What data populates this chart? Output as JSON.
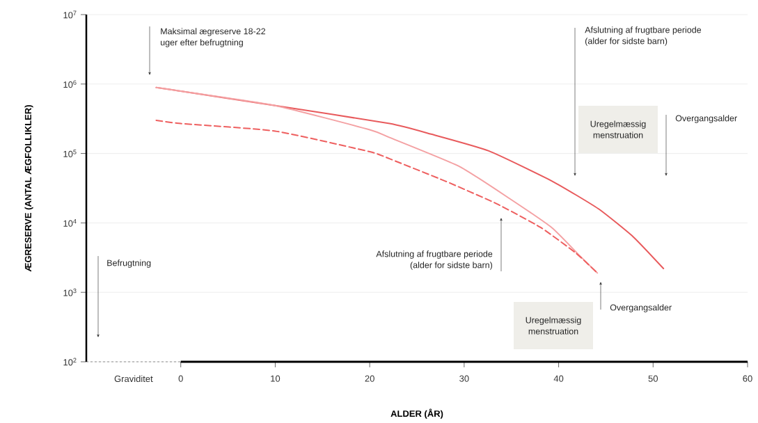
{
  "chart_data": {
    "type": "line",
    "xlabel": "ALDER (ÅR)",
    "ylabel": "ÆGRESERVE (ANTAL ÆGFOLLIKLER)",
    "log": "y",
    "grid": "y",
    "marker": "none",
    "xlim": [
      -10,
      60
    ],
    "xticks": [
      {
        "value": -5,
        "label": "Graviditet"
      },
      0,
      10,
      20,
      30,
      40,
      50,
      60
    ],
    "ylim": [
      100,
      10000000
    ],
    "yticks": [
      {
        "value": 100,
        "label": "10$^{2}$"
      },
      {
        "value": 1000,
        "label": "10$^{3}$"
      },
      {
        "value": 10000,
        "label": "10$^{4}$"
      },
      {
        "value": 100000,
        "label": "10$^{5}$"
      },
      {
        "value": 1000000,
        "label": "10$^{6}$"
      },
      {
        "value": 10000000,
        "label": "10$^{7}$"
      }
    ],
    "series": [
      {
        "color": "#e85a5c",
        "line_style": "solid",
        "x": [
          -2.6,
          0,
          10,
          22.1,
          26.5,
          32.6,
          39.3,
          44.2,
          47.9,
          51.1
        ],
        "values": [
          890000,
          790000,
          490000,
          270000,
          190000,
          109000,
          40000,
          16000,
          6300,
          2200
        ]
      },
      {
        "color": "#f4a1a3",
        "line_style": "solid",
        "x": [
          -2.6,
          0,
          10,
          20,
          22.1,
          29.5,
          34.9,
          39.3,
          42.2,
          44.1
        ],
        "values": [
          890000,
          790000,
          490000,
          220000,
          170000,
          65000,
          22000,
          8500,
          3400,
          1900
        ]
      },
      {
        "color": "#ee5f5f",
        "line_style": "dashed",
        "x": [
          -2.6,
          0,
          10,
          20,
          22.1,
          28.0,
          33.4,
          38.1,
          41.8,
          44.1
        ],
        "values": [
          300000,
          270000,
          210000,
          106000,
          84000,
          40000,
          19000,
          8600,
          3700,
          1900
        ]
      }
    ],
    "annotations": [
      "Maksimal ægreserve 18-22 uger efter befrugtning",
      "Befrugtning",
      "Afslutning af frugtbare periode (alder for sidste barn)",
      "Uregelmæssig menstruation",
      "Overgangsalder",
      "Afslutning af frugtbare periode (alder for sidste barn)",
      "Overgangsalder",
      "Uregelmæssig menstruation"
    ]
  }
}
